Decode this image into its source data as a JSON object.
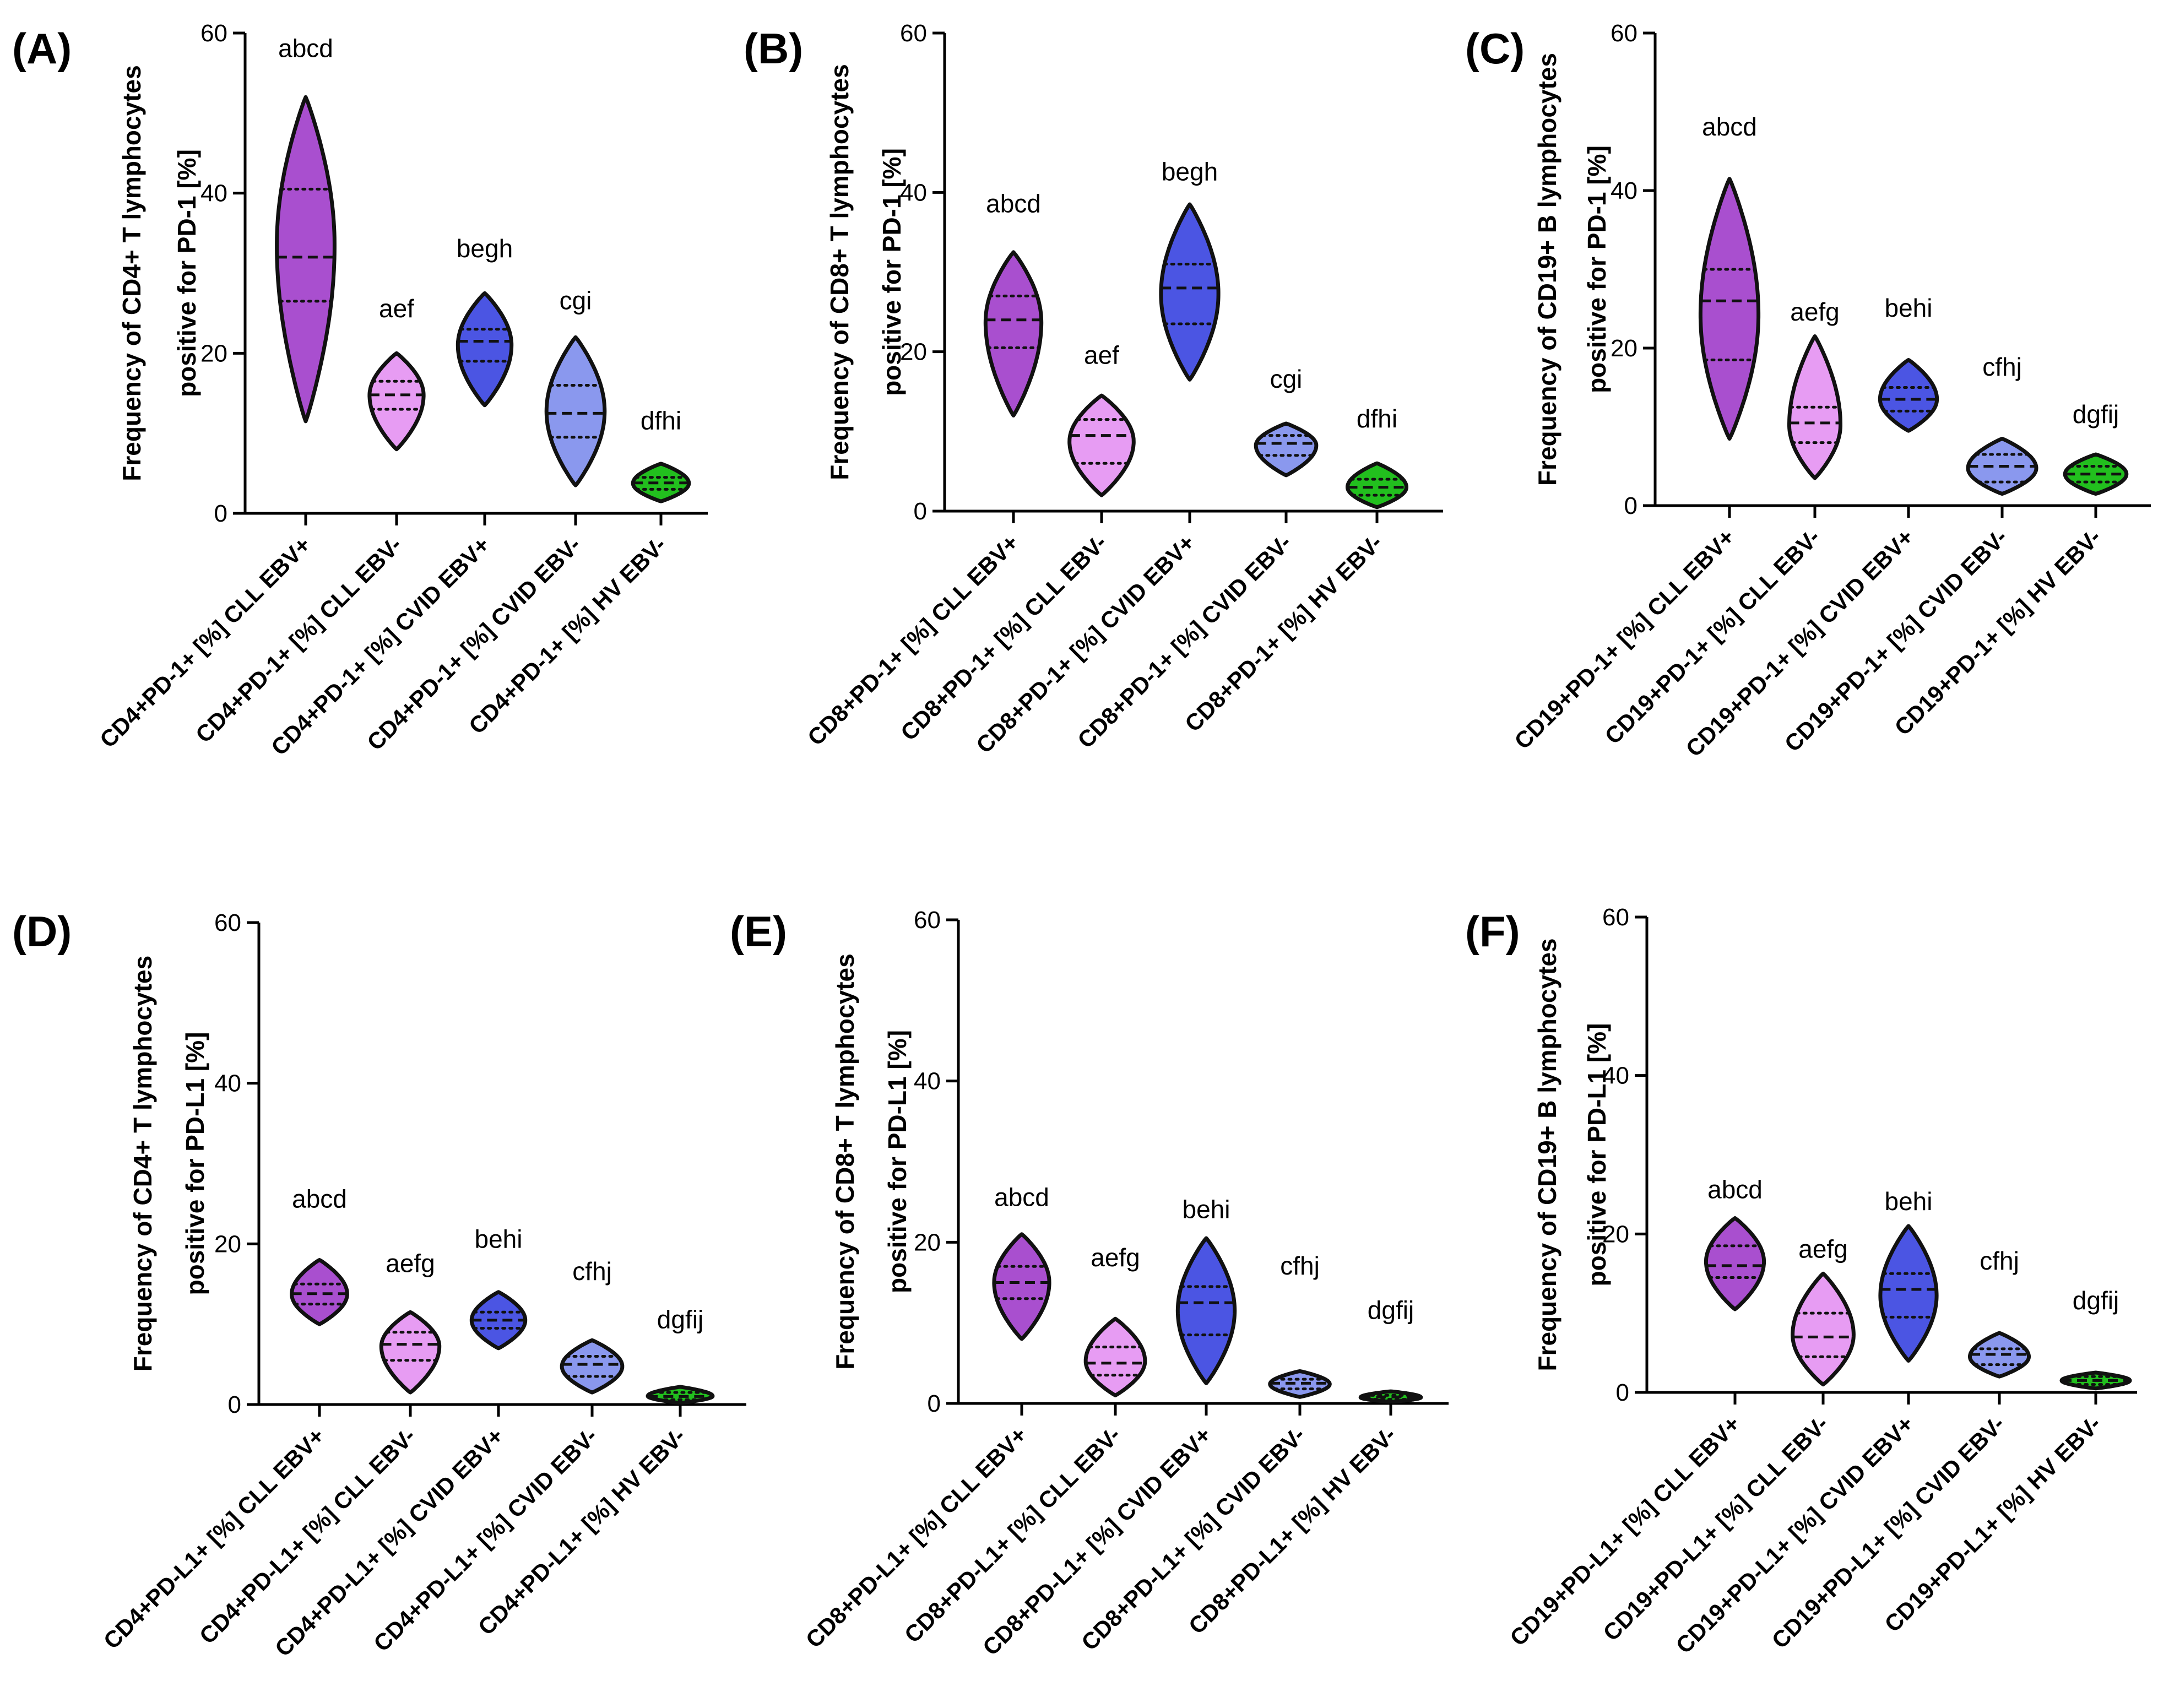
{
  "figure": {
    "colors": {
      "cll_ebv_pos": "#a94fcf",
      "cll_ebv_neg": "#e79cf3",
      "cvid_ebv_pos": "#4b55e3",
      "cvid_ebv_neg": "#8a98ee",
      "hv_ebv_neg": "#22bf1e",
      "outline": "#111111",
      "axis": "#000000"
    }
  },
  "chart_data": [
    {
      "type": "violin",
      "panel": "(A)",
      "ylabel_line1": "Frequency of CD4+ T lymphocytes",
      "ylabel_line2": "positive for PD-1 [%]",
      "ylim": [
        0,
        60
      ],
      "yticks": [
        "0",
        "20",
        "40",
        "60"
      ],
      "categories": [
        "CD4+PD-1+ [%] CLL EBV+",
        "CD4+PD-1+ [%] CLL EBV-",
        "CD4+PD-1+ [%] CVID EBV+",
        "CD4+PD-1+ [%] CVID EBV-",
        "CD4+PD-1+ [%] HV EBV-"
      ],
      "significance": [
        "abcd",
        "aef",
        "begh",
        "cgi",
        "dfhi"
      ],
      "series": [
        {
          "name": "CLL EBV+",
          "min": 11.5,
          "q1": 26.5,
          "median": 32,
          "q3": 40.5,
          "max": 52,
          "label_y": 57
        },
        {
          "name": "CLL EBV-",
          "min": 8,
          "q1": 13,
          "median": 14.8,
          "q3": 16.5,
          "max": 20,
          "label_y": 24.5
        },
        {
          "name": "CVID EBV+",
          "min": 13.5,
          "q1": 19,
          "median": 21.5,
          "q3": 23,
          "max": 27.5,
          "label_y": 32
        },
        {
          "name": "CVID EBV-",
          "min": 3.5,
          "q1": 9.5,
          "median": 12.5,
          "q3": 16,
          "max": 22,
          "label_y": 25.5
        },
        {
          "name": "HV EBV-",
          "min": 1.5,
          "q1": 3,
          "median": 3.8,
          "q3": 4.5,
          "max": 6.2,
          "label_y": 10.5
        }
      ]
    },
    {
      "type": "violin",
      "panel": "(B)",
      "ylabel_line1": "Frequency of CD8+ T lymphocytes",
      "ylabel_line2": "positive for PD-1 [%]",
      "ylim": [
        0,
        60
      ],
      "yticks": [
        "0",
        "20",
        "40",
        "60"
      ],
      "categories": [
        "CD8+PD-1+ [%] CLL EBV+",
        "CD8+PD-1+ [%] CLL EBV-",
        "CD8+PD-1+ [%] CVID EBV+",
        "CD8+PD-1+ [%] CVID EBV-",
        "CD8+PD-1+ [%] HV EBV-"
      ],
      "significance": [
        "abcd",
        "aef",
        "begh",
        "cgi",
        "dfhi"
      ],
      "series": [
        {
          "name": "CLL EBV+",
          "min": 12,
          "q1": 20.5,
          "median": 24,
          "q3": 27,
          "max": 32.5,
          "label_y": 37.5
        },
        {
          "name": "CLL EBV-",
          "min": 2,
          "q1": 6,
          "median": 9.5,
          "q3": 11.5,
          "max": 14.5,
          "label_y": 18.5
        },
        {
          "name": "CVID EBV+",
          "min": 16.5,
          "q1": 23.5,
          "median": 28,
          "q3": 31,
          "max": 38.5,
          "label_y": 41.5
        },
        {
          "name": "CVID EBV-",
          "min": 4.5,
          "q1": 7,
          "median": 8.5,
          "q3": 9.5,
          "max": 11,
          "label_y": 15.5
        },
        {
          "name": "HV EBV-",
          "min": 0.5,
          "q1": 2,
          "median": 3,
          "q3": 4,
          "max": 6,
          "label_y": 10.5
        }
      ]
    },
    {
      "type": "violin",
      "panel": "(C)",
      "ylabel_line1": "Frequency of CD19+ B lymphocytes",
      "ylabel_line2": "positive for PD-1 [%]",
      "ylim": [
        0,
        60
      ],
      "yticks": [
        "0",
        "20",
        "40",
        "60"
      ],
      "categories": [
        "CD19+PD-1+ [%] CLL EBV+",
        "CD19+PD-1+ [%] CLL EBV-",
        "CD19+PD-1+ [%] CVID EBV+",
        "CD19+PD-1+ [%] CVID EBV-",
        "CD19+PD-1+ [%] HV EBV-"
      ],
      "significance": [
        "abcd",
        "aefg",
        "behi",
        "cfhj",
        "dgfij"
      ],
      "series": [
        {
          "name": "CLL EBV+",
          "min": 8.5,
          "q1": 18.5,
          "median": 26,
          "q3": 30,
          "max": 41.5,
          "label_y": 47
        },
        {
          "name": "CLL EBV-",
          "min": 3.5,
          "q1": 8,
          "median": 10.5,
          "q3": 12.5,
          "max": 21.5,
          "label_y": 23.5
        },
        {
          "name": "CVID EBV+",
          "min": 9.5,
          "q1": 12,
          "median": 13.5,
          "q3": 15,
          "max": 18.5,
          "label_y": 24
        },
        {
          "name": "CVID EBV-",
          "min": 1.5,
          "q1": 3,
          "median": 5,
          "q3": 6.5,
          "max": 8.5,
          "label_y": 16.5
        },
        {
          "name": "HV EBV-",
          "min": 1.5,
          "q1": 3,
          "median": 4,
          "q3": 5,
          "max": 6.5,
          "label_y": 10.5
        }
      ]
    },
    {
      "type": "violin",
      "panel": "(D)",
      "ylabel_line1": "Frequency of CD4+ T lymphocytes",
      "ylabel_line2": "positive for PD-L1 [%]",
      "ylim": [
        0,
        60
      ],
      "yticks": [
        "0",
        "20",
        "40",
        "60"
      ],
      "categories": [
        "CD4+PD-L1+ [%] CLL EBV+",
        "CD4+PD-L1+ [%] CLL EBV-",
        "CD4+PD-L1+ [%] CVID EBV+",
        "CD4+PD-L1+ [%] CVID EBV-",
        "CD4+PD-L1+ [%] HV EBV-"
      ],
      "significance": [
        "abcd",
        "aefg",
        "behi",
        "cfhj",
        "dgfij"
      ],
      "series": [
        {
          "name": "CLL EBV+",
          "min": 10,
          "q1": 12.5,
          "median": 13.8,
          "q3": 15,
          "max": 18,
          "label_y": 24.5
        },
        {
          "name": "CLL EBV-",
          "min": 1.5,
          "q1": 5.5,
          "median": 7.5,
          "q3": 9,
          "max": 11.5,
          "label_y": 16.5
        },
        {
          "name": "CVID EBV+",
          "min": 7,
          "q1": 9.5,
          "median": 10.5,
          "q3": 11.5,
          "max": 14,
          "label_y": 19.5
        },
        {
          "name": "CVID EBV-",
          "min": 1.5,
          "q1": 3.5,
          "median": 5,
          "q3": 6,
          "max": 8,
          "label_y": 15.5
        },
        {
          "name": "HV EBV-",
          "min": 0.2,
          "q1": 0.6,
          "median": 1,
          "q3": 1.5,
          "max": 2.2,
          "label_y": 9.5
        }
      ]
    },
    {
      "type": "violin",
      "panel": "(E)",
      "ylabel_line1": "Frequency of CD8+ T lymphocytes",
      "ylabel_line2": "positive for PD-L1 [%]",
      "ylim": [
        0,
        60
      ],
      "yticks": [
        "0",
        "20",
        "40",
        "60"
      ],
      "categories": [
        "CD8+PD-L1+ [%] CLL EBV+",
        "CD8+PD-L1+ [%] CLL EBV-",
        "CD8+PD-L1+ [%] CVID EBV+",
        "CD8+PD-L1+ [%] CVID EBV-",
        "CD8+PD-L1+ [%] HV EBV-"
      ],
      "significance": [
        "abcd",
        "aefg",
        "behi",
        "cfhj",
        "dgfij"
      ],
      "series": [
        {
          "name": "CLL EBV+",
          "min": 8,
          "q1": 13,
          "median": 15,
          "q3": 17,
          "max": 21,
          "label_y": 24.5
        },
        {
          "name": "CLL EBV-",
          "min": 1,
          "q1": 3.5,
          "median": 5,
          "q3": 7,
          "max": 10.5,
          "label_y": 17
        },
        {
          "name": "CVID EBV+",
          "min": 2.5,
          "q1": 8.5,
          "median": 12.5,
          "q3": 14.5,
          "max": 20.5,
          "label_y": 23
        },
        {
          "name": "CVID EBV-",
          "min": 0.8,
          "q1": 1.8,
          "median": 2.5,
          "q3": 3,
          "max": 4,
          "label_y": 16
        },
        {
          "name": "HV EBV-",
          "min": 0.2,
          "q1": 0.5,
          "median": 0.8,
          "q3": 1,
          "max": 1.5,
          "label_y": 10.5
        }
      ]
    },
    {
      "type": "violin",
      "panel": "(F)",
      "ylabel_line1": "Frequency of CD19+ B lymphocytes",
      "ylabel_line2": "positive for PD-L1 [%]",
      "ylim": [
        0,
        60
      ],
      "yticks": [
        "0",
        "20",
        "40",
        "60"
      ],
      "categories": [
        "CD19+PD-L1+ [%] CLL EBV+",
        "CD19+PD-L1+ [%] CLL EBV-",
        "CD19+PD-L1+ [%] CVID EBV+",
        "CD19+PD-L1+ [%] CVID EBV-",
        "CD19+PD-L1+ [%] HV EBV-"
      ],
      "significance": [
        "abcd",
        "aefg",
        "behi",
        "cfhj",
        "dgfij"
      ],
      "series": [
        {
          "name": "CLL EBV+",
          "min": 10.5,
          "q1": 14.5,
          "median": 16,
          "q3": 18.5,
          "max": 22,
          "label_y": 24.5
        },
        {
          "name": "CLL EBV-",
          "min": 1,
          "q1": 4.5,
          "median": 7,
          "q3": 10,
          "max": 15,
          "label_y": 17
        },
        {
          "name": "CVID EBV+",
          "min": 4,
          "q1": 9.5,
          "median": 13,
          "q3": 15,
          "max": 21,
          "label_y": 23
        },
        {
          "name": "CVID EBV-",
          "min": 2,
          "q1": 3.5,
          "median": 4.8,
          "q3": 5.5,
          "max": 7.5,
          "label_y": 15.5
        },
        {
          "name": "HV EBV-",
          "min": 0.5,
          "q1": 1,
          "median": 1.5,
          "q3": 2,
          "max": 2.5,
          "label_y": 10.5
        }
      ]
    }
  ]
}
